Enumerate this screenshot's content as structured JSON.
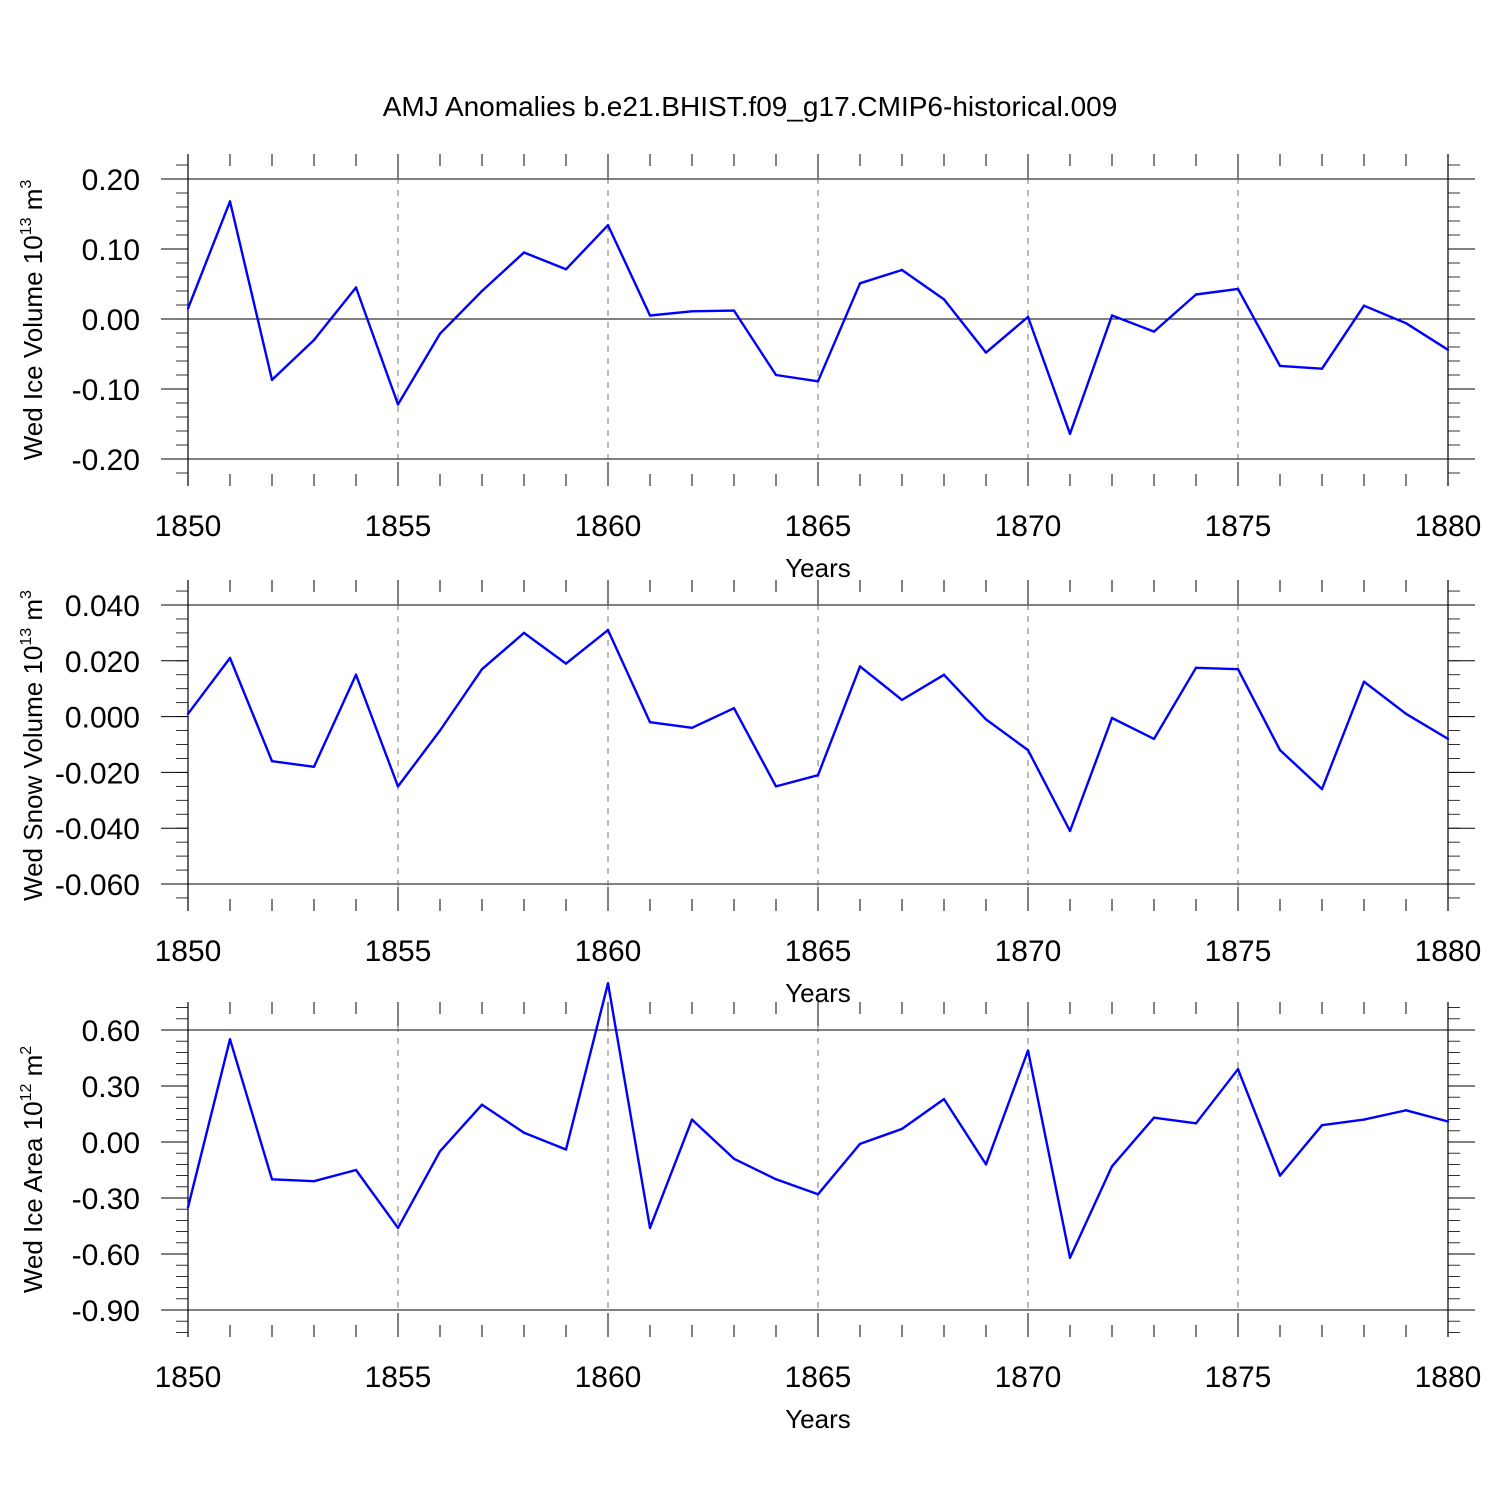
{
  "title": "AMJ Anomalies b.e21.BHIST.f09_g17.CMIP6-historical.009",
  "line_color": "#0000ff",
  "chart_data": [
    {
      "type": "line",
      "ylabel": "Wed Ice Volume",
      "ylabel_unit_base": "10",
      "ylabel_unit_exp": "13",
      "ylabel_unit_tail": "m",
      "ylabel_unit_tail_exp": "3",
      "xlabel": "Years",
      "xlim": [
        1850,
        1880
      ],
      "ylim": [
        -0.24,
        0.24
      ],
      "x_ticks": [
        "1850",
        "1855",
        "1860",
        "1865",
        "1870",
        "1875",
        "1880"
      ],
      "y_ticks": [
        {
          "value": 0.2,
          "label": "0.20"
        },
        {
          "value": 0.1,
          "label": "0.10"
        },
        {
          "value": 0.0,
          "label": "0.00"
        },
        {
          "value": -0.1,
          "label": "-0.10"
        },
        {
          "value": -0.2,
          "label": "-0.20"
        }
      ],
      "y_minor_step": 0.02,
      "zero_line": 0.0,
      "grid_x": [
        1855,
        1860,
        1865,
        1870,
        1875
      ],
      "x": [
        1850,
        1851,
        1852,
        1853,
        1854,
        1855,
        1856,
        1857,
        1858,
        1859,
        1860,
        1861,
        1862,
        1863,
        1864,
        1865,
        1866,
        1867,
        1868,
        1869,
        1870,
        1871,
        1872,
        1873,
        1874,
        1875,
        1876,
        1877,
        1878,
        1879,
        1880
      ],
      "y": [
        0.015,
        0.168,
        -0.087,
        -0.03,
        0.045,
        -0.122,
        -0.021,
        0.04,
        0.095,
        0.071,
        0.134,
        0.005,
        0.011,
        0.012,
        -0.08,
        -0.089,
        0.051,
        0.07,
        0.028,
        -0.048,
        0.003,
        -0.164,
        0.005,
        -0.018,
        0.035,
        0.043,
        -0.067,
        -0.071,
        0.019,
        -0.006,
        -0.044
      ]
    },
    {
      "type": "line",
      "ylabel": "Wed Snow Volume",
      "ylabel_unit_base": "10",
      "ylabel_unit_exp": "13",
      "ylabel_unit_tail": "m",
      "ylabel_unit_tail_exp": "3",
      "xlabel": "Years",
      "xlim": [
        1850,
        1880
      ],
      "ylim": [
        -0.06,
        0.04
      ],
      "x_ticks": [
        "1850",
        "1855",
        "1860",
        "1865",
        "1870",
        "1875",
        "1880"
      ],
      "y_ticks": [
        {
          "value": 0.04,
          "label": "0.040"
        },
        {
          "value": 0.02,
          "label": "0.020"
        },
        {
          "value": 0.0,
          "label": "0.000"
        },
        {
          "value": -0.02,
          "label": "-0.020"
        },
        {
          "value": -0.04,
          "label": "-0.040"
        },
        {
          "value": -0.06,
          "label": "-0.060"
        }
      ],
      "y_minor_step": 0.005,
      "zero_line": null,
      "grid_x": [
        1855,
        1860,
        1865,
        1870,
        1875
      ],
      "x": [
        1850,
        1851,
        1852,
        1853,
        1854,
        1855,
        1856,
        1857,
        1858,
        1859,
        1860,
        1861,
        1862,
        1863,
        1864,
        1865,
        1866,
        1867,
        1868,
        1869,
        1870,
        1871,
        1872,
        1873,
        1874,
        1875,
        1876,
        1877,
        1878,
        1879,
        1880
      ],
      "y": [
        0.001,
        0.021,
        -0.016,
        -0.018,
        0.015,
        -0.025,
        -0.005,
        0.017,
        0.03,
        0.019,
        0.031,
        -0.002,
        -0.004,
        0.003,
        -0.025,
        -0.021,
        0.018,
        0.006,
        0.015,
        -0.001,
        -0.012,
        -0.041,
        -0.0005,
        -0.008,
        0.0175,
        0.017,
        -0.012,
        -0.026,
        0.0125,
        0.001,
        -0.008
      ]
    },
    {
      "type": "line",
      "ylabel": "Wed Ice Area",
      "ylabel_unit_base": "10",
      "ylabel_unit_exp": "12",
      "ylabel_unit_tail": "m",
      "ylabel_unit_tail_exp": "2",
      "xlabel": "Years",
      "xlim": [
        1850,
        1880
      ],
      "ylim": [
        -0.9,
        0.9
      ],
      "x_ticks": [
        "1850",
        "1855",
        "1860",
        "1865",
        "1870",
        "1875",
        "1880"
      ],
      "y_ticks": [
        {
          "value": 0.6,
          "label": "0.60"
        },
        {
          "value": 0.3,
          "label": "0.30"
        },
        {
          "value": 0.0,
          "label": "0.00"
        },
        {
          "value": -0.3,
          "label": "-0.30"
        },
        {
          "value": -0.6,
          "label": "-0.60"
        },
        {
          "value": -0.9,
          "label": "-0.90"
        }
      ],
      "y_minor_step": 0.06,
      "zero_line": null,
      "grid_x": [
        1855,
        1860,
        1865,
        1870,
        1875
      ],
      "x": [
        1850,
        1851,
        1852,
        1853,
        1854,
        1855,
        1856,
        1857,
        1858,
        1859,
        1860,
        1861,
        1862,
        1863,
        1864,
        1865,
        1866,
        1867,
        1868,
        1869,
        1870,
        1871,
        1872,
        1873,
        1874,
        1875,
        1876,
        1877,
        1878,
        1879,
        1880
      ],
      "y": [
        -0.35,
        0.55,
        -0.2,
        -0.21,
        -0.15,
        -0.46,
        -0.05,
        0.2,
        0.05,
        -0.04,
        0.85,
        -0.46,
        0.12,
        -0.09,
        -0.2,
        -0.28,
        -0.01,
        0.07,
        0.23,
        -0.12,
        0.49,
        -0.62,
        -0.13,
        0.13,
        0.1,
        0.39,
        -0.18,
        0.09,
        0.12,
        0.17,
        0.11
      ]
    }
  ]
}
